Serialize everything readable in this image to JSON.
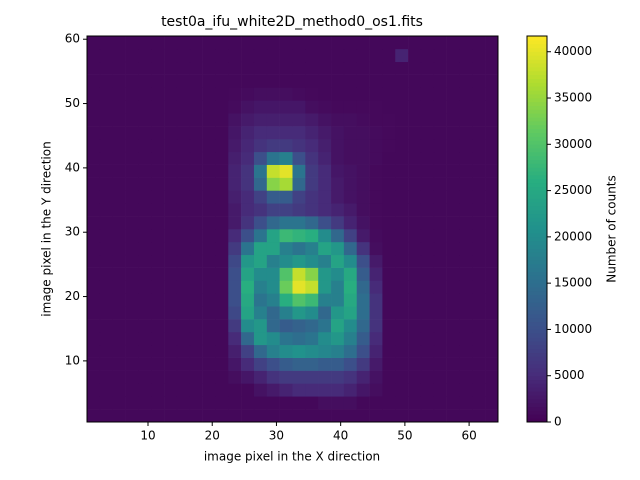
{
  "chart_data": {
    "type": "heatmap",
    "title": "test0a_ifu_white2D_method0_os1.fits",
    "xlabel": "image pixel in the X direction",
    "ylabel": "image pixel in the Y direction",
    "xlim": [
      0.5,
      64.5
    ],
    "ylim": [
      0.5,
      60.5
    ],
    "xticks": [
      10,
      20,
      30,
      40,
      50,
      60
    ],
    "yticks": [
      10,
      20,
      30,
      40,
      50,
      60
    ],
    "colormap": "viridis",
    "colorbar": {
      "label": "Number of counts",
      "lim": [
        0,
        41700
      ],
      "ticks": [
        0,
        5000,
        10000,
        15000,
        20000,
        25000,
        30000,
        35000,
        40000
      ]
    },
    "z": [
      [
        800,
        800,
        800,
        800,
        800,
        800,
        800,
        800,
        800,
        800,
        800,
        800,
        800,
        800,
        800,
        800,
        800,
        800,
        800,
        800,
        800,
        800,
        800,
        800,
        800,
        800,
        800,
        800,
        800,
        800,
        800,
        800
      ],
      [
        800,
        800,
        800,
        800,
        800,
        800,
        800,
        800,
        800,
        800,
        800,
        800,
        800,
        800,
        800,
        800,
        800,
        800,
        1500,
        1500,
        1500,
        800,
        800,
        800,
        800,
        800,
        800,
        800,
        800,
        800,
        800,
        800
      ],
      [
        800,
        800,
        800,
        800,
        800,
        800,
        800,
        800,
        800,
        800,
        800,
        800,
        800,
        2000,
        3000,
        4000,
        5000,
        5000,
        5000,
        5000,
        4000,
        2500,
        1500,
        800,
        800,
        800,
        800,
        800,
        800,
        800,
        800,
        800
      ],
      [
        800,
        800,
        800,
        800,
        800,
        800,
        800,
        800,
        800,
        800,
        800,
        1500,
        2500,
        4000,
        6000,
        7000,
        7000,
        7000,
        7000,
        7000,
        6000,
        4000,
        2000,
        800,
        800,
        800,
        800,
        800,
        800,
        800,
        800,
        800
      ],
      [
        800,
        800,
        800,
        800,
        800,
        800,
        800,
        800,
        800,
        800,
        800,
        2500,
        5000,
        8000,
        10000,
        12000,
        13000,
        13000,
        12000,
        12000,
        10000,
        7000,
        3000,
        800,
        800,
        800,
        800,
        800,
        800,
        800,
        800,
        800
      ],
      [
        800,
        800,
        800,
        800,
        800,
        800,
        800,
        800,
        800,
        800,
        800,
        3500,
        8000,
        14000,
        18000,
        20000,
        21000,
        20000,
        19000,
        18000,
        15000,
        10000,
        4000,
        800,
        800,
        800,
        800,
        800,
        800,
        800,
        800,
        800
      ],
      [
        800,
        800,
        800,
        800,
        800,
        800,
        800,
        800,
        800,
        800,
        800,
        5000,
        14000,
        22000,
        20000,
        16000,
        15000,
        16000,
        20000,
        22000,
        18000,
        12000,
        5000,
        800,
        800,
        800,
        800,
        800,
        800,
        800,
        800,
        800
      ],
      [
        800,
        800,
        800,
        800,
        800,
        800,
        800,
        800,
        800,
        800,
        800,
        7000,
        20000,
        22000,
        14000,
        12000,
        13000,
        14000,
        16000,
        24000,
        20000,
        14000,
        6000,
        800,
        800,
        800,
        800,
        800,
        800,
        800,
        800,
        800
      ],
      [
        800,
        800,
        800,
        800,
        800,
        800,
        800,
        800,
        800,
        800,
        800,
        9000,
        24000,
        18000,
        14000,
        18000,
        22000,
        20000,
        14000,
        22000,
        24000,
        15000,
        6000,
        800,
        800,
        800,
        800,
        800,
        800,
        800,
        800,
        800
      ],
      [
        800,
        800,
        800,
        800,
        800,
        800,
        800,
        800,
        800,
        800,
        800,
        10000,
        25000,
        16000,
        18000,
        26000,
        30000,
        28000,
        18000,
        18000,
        25000,
        15000,
        6000,
        800,
        800,
        800,
        800,
        800,
        800,
        800,
        800,
        800
      ],
      [
        800,
        800,
        800,
        800,
        800,
        800,
        800,
        800,
        800,
        800,
        800,
        10000,
        26000,
        18000,
        20000,
        32000,
        40000,
        38000,
        22000,
        18000,
        26000,
        14000,
        5000,
        800,
        800,
        800,
        800,
        800,
        800,
        800,
        800,
        800
      ],
      [
        800,
        800,
        800,
        800,
        800,
        800,
        800,
        800,
        800,
        800,
        800,
        10000,
        24000,
        20000,
        20000,
        30000,
        38000,
        34000,
        22000,
        20000,
        25000,
        12000,
        4000,
        800,
        800,
        800,
        800,
        800,
        800,
        800,
        800,
        800
      ],
      [
        800,
        800,
        800,
        800,
        800,
        800,
        800,
        800,
        800,
        800,
        800,
        9000,
        22000,
        24000,
        18000,
        20000,
        22000,
        20000,
        18000,
        24000,
        20000,
        10000,
        3000,
        800,
        800,
        800,
        800,
        800,
        800,
        800,
        800,
        800
      ],
      [
        800,
        800,
        800,
        800,
        800,
        800,
        800,
        800,
        800,
        800,
        800,
        7000,
        16000,
        24000,
        24000,
        18000,
        16000,
        18000,
        24000,
        22000,
        14000,
        6000,
        1500,
        800,
        800,
        800,
        800,
        800,
        800,
        800,
        800,
        800
      ],
      [
        800,
        800,
        800,
        800,
        800,
        800,
        800,
        800,
        800,
        800,
        800,
        5000,
        10000,
        16000,
        24000,
        28000,
        27000,
        26000,
        20000,
        14000,
        8000,
        3000,
        1200,
        800,
        800,
        800,
        800,
        800,
        800,
        800,
        800,
        800
      ],
      [
        800,
        800,
        800,
        800,
        800,
        800,
        800,
        800,
        800,
        800,
        800,
        3000,
        6000,
        10000,
        14000,
        16000,
        16000,
        14000,
        10000,
        7000,
        4000,
        2000,
        1000,
        800,
        800,
        800,
        800,
        800,
        800,
        800,
        800,
        800
      ],
      [
        800,
        800,
        800,
        800,
        800,
        800,
        800,
        800,
        800,
        800,
        800,
        3000,
        5000,
        6000,
        8000,
        8000,
        7000,
        6000,
        5000,
        4000,
        3000,
        1500,
        1000,
        800,
        800,
        800,
        800,
        800,
        800,
        800,
        800,
        800
      ],
      [
        800,
        800,
        800,
        800,
        800,
        800,
        800,
        800,
        800,
        800,
        800,
        3500,
        5000,
        8000,
        12000,
        12000,
        8000,
        6000,
        5000,
        3000,
        2000,
        1500,
        1000,
        800,
        800,
        800,
        800,
        800,
        800,
        800,
        800,
        800
      ],
      [
        800,
        800,
        800,
        800,
        800,
        800,
        800,
        800,
        800,
        800,
        800,
        4000,
        6000,
        14000,
        34000,
        36000,
        14000,
        7000,
        5000,
        3000,
        2000,
        1500,
        1000,
        800,
        800,
        800,
        800,
        800,
        800,
        800,
        800,
        800
      ],
      [
        800,
        800,
        800,
        800,
        800,
        800,
        800,
        800,
        800,
        800,
        800,
        4000,
        6000,
        16000,
        38000,
        40000,
        16000,
        7000,
        5000,
        2500,
        2000,
        1500,
        1000,
        800,
        800,
        800,
        800,
        800,
        800,
        800,
        800,
        800
      ],
      [
        800,
        800,
        800,
        800,
        800,
        800,
        800,
        800,
        800,
        800,
        800,
        3500,
        5000,
        10000,
        16000,
        18000,
        10000,
        6000,
        4000,
        2000,
        1500,
        1500,
        1200,
        800,
        800,
        800,
        800,
        800,
        800,
        800,
        800,
        800
      ],
      [
        800,
        800,
        800,
        800,
        800,
        800,
        800,
        800,
        800,
        800,
        800,
        3000,
        4500,
        6000,
        7000,
        7000,
        6000,
        5000,
        3500,
        2000,
        1500,
        1500,
        1200,
        1000,
        800,
        800,
        800,
        800,
        800,
        800,
        800,
        800
      ],
      [
        800,
        800,
        800,
        800,
        800,
        800,
        800,
        800,
        800,
        800,
        800,
        2500,
        4000,
        5000,
        5000,
        5000,
        5000,
        4000,
        3000,
        2000,
        1500,
        1500,
        1200,
        1000,
        800,
        800,
        800,
        800,
        800,
        800,
        800,
        800
      ],
      [
        800,
        800,
        800,
        800,
        800,
        800,
        800,
        800,
        800,
        800,
        800,
        2000,
        3000,
        3500,
        3500,
        3500,
        3500,
        3000,
        2000,
        1500,
        1500,
        1200,
        1000,
        1000,
        800,
        800,
        800,
        800,
        800,
        800,
        800,
        800
      ],
      [
        800,
        800,
        800,
        800,
        800,
        800,
        800,
        800,
        800,
        800,
        800,
        1200,
        2000,
        2500,
        2500,
        2500,
        2500,
        1500,
        1200,
        1000,
        1000,
        1000,
        1000,
        800,
        800,
        800,
        800,
        800,
        800,
        800,
        800,
        800
      ],
      [
        800,
        800,
        800,
        800,
        800,
        800,
        800,
        800,
        800,
        800,
        800,
        1000,
        1200,
        1500,
        1500,
        1500,
        1200,
        1000,
        800,
        800,
        800,
        800,
        800,
        800,
        800,
        800,
        800,
        800,
        800,
        800,
        800,
        800
      ],
      [
        800,
        800,
        800,
        800,
        800,
        800,
        800,
        800,
        800,
        800,
        800,
        800,
        800,
        800,
        800,
        800,
        800,
        800,
        800,
        800,
        800,
        800,
        800,
        800,
        800,
        800,
        800,
        800,
        800,
        800,
        800,
        800
      ],
      [
        800,
        800,
        800,
        800,
        800,
        800,
        800,
        800,
        800,
        800,
        800,
        800,
        800,
        800,
        800,
        800,
        800,
        800,
        800,
        800,
        800,
        800,
        800,
        800,
        800,
        800,
        800,
        800,
        800,
        800,
        800,
        800
      ],
      [
        800,
        800,
        800,
        800,
        800,
        800,
        800,
        800,
        800,
        800,
        800,
        800,
        800,
        800,
        800,
        800,
        800,
        800,
        800,
        800,
        800,
        800,
        800,
        800,
        4000,
        800,
        800,
        800,
        800,
        800,
        800,
        800
      ],
      [
        800,
        800,
        800,
        800,
        800,
        800,
        800,
        800,
        800,
        800,
        800,
        800,
        800,
        800,
        800,
        800,
        800,
        800,
        800,
        800,
        800,
        800,
        800,
        800,
        800,
        800,
        800,
        800,
        800,
        800,
        800,
        800
      ]
    ]
  }
}
